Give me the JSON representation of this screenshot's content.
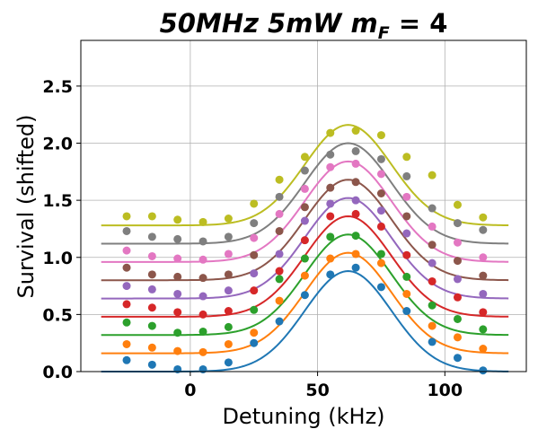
{
  "chart_data": {
    "type": "line",
    "title_parts": [
      {
        "text": "50MHz 5mW ",
        "italic": true
      },
      {
        "text": "m",
        "italic": true
      },
      {
        "text": "F",
        "italic": true,
        "sub": true
      },
      {
        "text": " = 4",
        "italic": false
      }
    ],
    "xlabel": "Detuning (kHz)",
    "ylabel": "Survival (shifted)",
    "xlim": [
      -43,
      132
    ],
    "ylim": [
      0.0,
      2.9
    ],
    "xticks": [
      0,
      50,
      100
    ],
    "yticks": [
      0.0,
      0.5,
      1.0,
      1.5,
      2.0,
      2.5
    ],
    "xtick_labels": [
      "0",
      "50",
      "100"
    ],
    "ytick_labels": [
      "0.0",
      "0.5",
      "1.0",
      "1.5",
      "2.0",
      "2.5"
    ],
    "grid": true,
    "legend": "none",
    "x": [
      -25,
      -15,
      -5,
      5,
      15,
      25,
      35,
      45,
      55,
      65,
      75,
      85,
      95,
      105,
      115
    ],
    "fit_x_range": [
      -35,
      125
    ],
    "series": [
      {
        "color": "#1f77b4",
        "values": [
          0.1,
          0.06,
          0.02,
          0.02,
          0.08,
          0.25,
          0.44,
          0.67,
          0.85,
          0.91,
          0.74,
          0.53,
          0.26,
          0.12,
          0.01
        ],
        "fit": {
          "base": 0.0,
          "amp": 0.88,
          "center": 62,
          "sigma": 17
        }
      },
      {
        "color": "#ff7f0e",
        "values": [
          0.24,
          0.21,
          0.18,
          0.17,
          0.24,
          0.34,
          0.62,
          0.84,
          0.99,
          1.03,
          0.95,
          0.68,
          0.4,
          0.3,
          0.2
        ],
        "fit": {
          "base": 0.16,
          "amp": 0.88,
          "center": 62,
          "sigma": 17
        }
      },
      {
        "color": "#2ca02c",
        "values": [
          0.43,
          0.4,
          0.34,
          0.35,
          0.39,
          0.54,
          0.81,
          0.99,
          1.18,
          1.19,
          1.03,
          0.83,
          0.58,
          0.46,
          0.37
        ],
        "fit": {
          "base": 0.32,
          "amp": 0.88,
          "center": 62,
          "sigma": 17
        }
      },
      {
        "color": "#d62728",
        "values": [
          0.59,
          0.56,
          0.52,
          0.5,
          0.53,
          0.71,
          0.88,
          1.15,
          1.36,
          1.38,
          1.27,
          1.02,
          0.79,
          0.65,
          0.52
        ],
        "fit": {
          "base": 0.48,
          "amp": 0.88,
          "center": 62,
          "sigma": 17
        }
      },
      {
        "color": "#9467bd",
        "values": [
          0.75,
          0.72,
          0.68,
          0.66,
          0.71,
          0.86,
          1.03,
          1.32,
          1.47,
          1.5,
          1.41,
          1.21,
          0.95,
          0.81,
          0.68
        ],
        "fit": {
          "base": 0.64,
          "amp": 0.88,
          "center": 62,
          "sigma": 17
        }
      },
      {
        "color": "#8c564b",
        "values": [
          0.91,
          0.85,
          0.83,
          0.82,
          0.85,
          1.02,
          1.23,
          1.44,
          1.61,
          1.66,
          1.56,
          1.36,
          1.11,
          0.97,
          0.84
        ],
        "fit": {
          "base": 0.8,
          "amp": 0.88,
          "center": 62,
          "sigma": 17
        }
      },
      {
        "color": "#e377c2",
        "values": [
          1.06,
          1.01,
          0.99,
          0.98,
          1.03,
          1.17,
          1.38,
          1.6,
          1.79,
          1.82,
          1.73,
          1.53,
          1.27,
          1.13,
          1.0
        ],
        "fit": {
          "base": 0.96,
          "amp": 0.88,
          "center": 62,
          "sigma": 17
        }
      },
      {
        "color": "#7f7f7f",
        "values": [
          1.23,
          1.18,
          1.16,
          1.14,
          1.18,
          1.3,
          1.53,
          1.76,
          1.9,
          1.93,
          1.86,
          1.71,
          1.43,
          1.3,
          1.24
        ],
        "fit": {
          "base": 1.12,
          "amp": 0.88,
          "center": 62,
          "sigma": 17
        }
      },
      {
        "color": "#bcbd22",
        "values": [
          1.36,
          1.36,
          1.33,
          1.31,
          1.34,
          1.47,
          1.68,
          1.88,
          2.09,
          2.11,
          2.07,
          1.88,
          1.72,
          1.46,
          1.35
        ],
        "fit": {
          "base": 1.28,
          "amp": 0.88,
          "center": 62,
          "sigma": 17
        }
      }
    ]
  }
}
